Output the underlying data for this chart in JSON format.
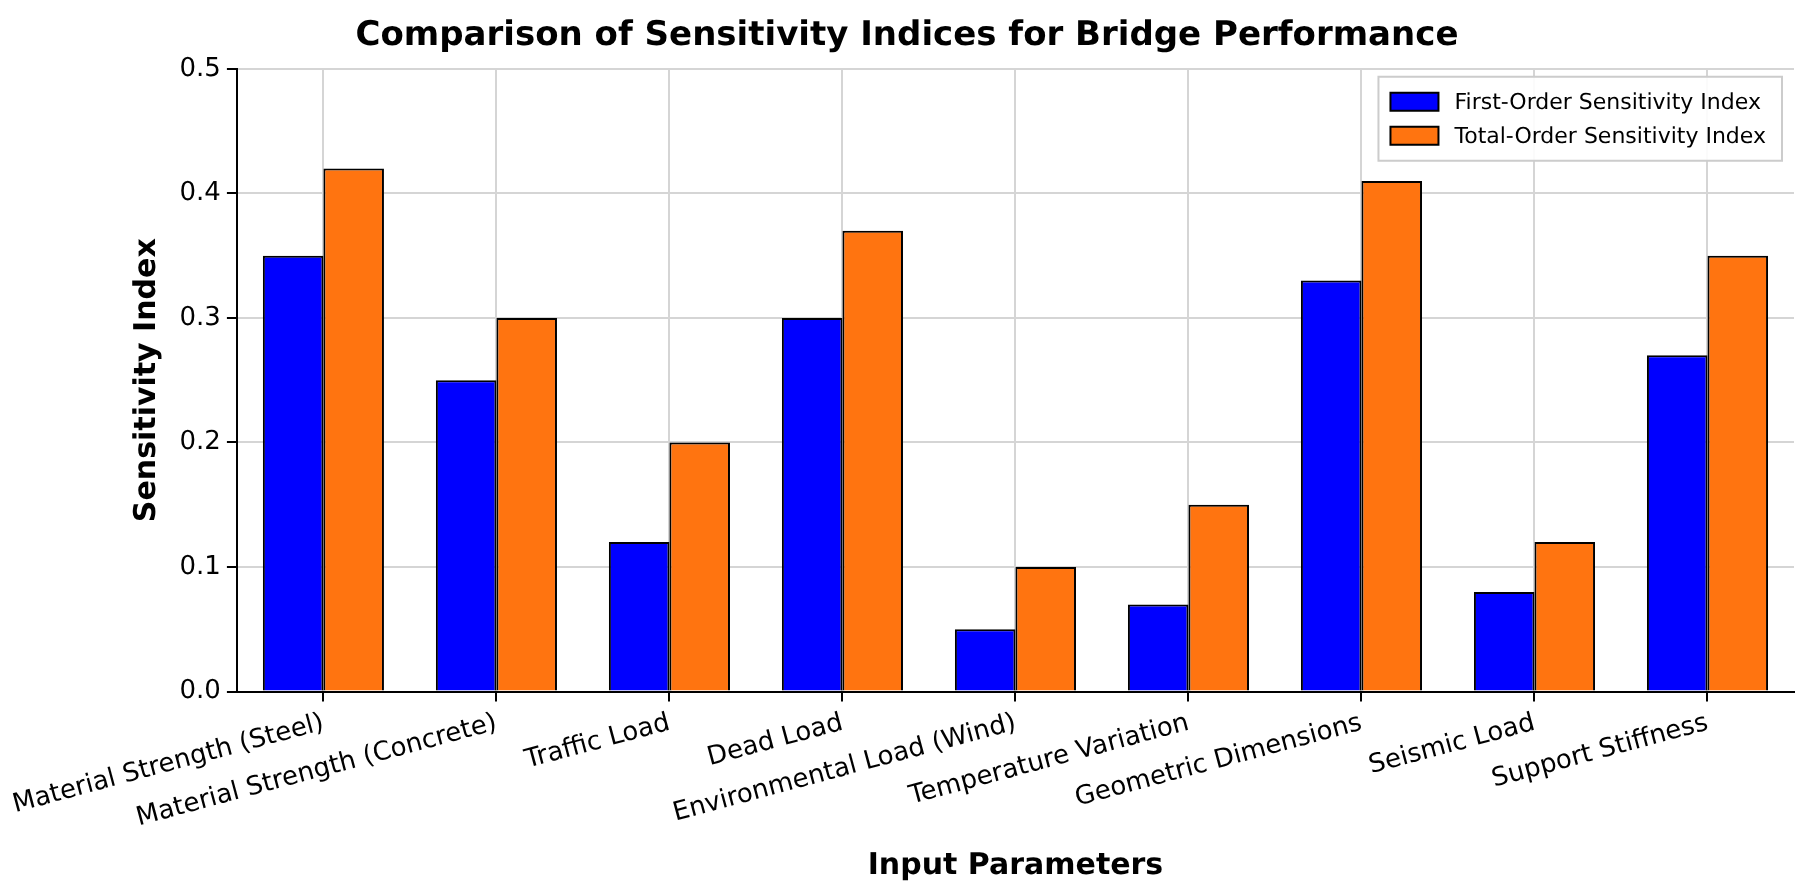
{
  "chart_data": {
    "type": "bar",
    "title": "Comparison of Sensitivity Indices for Bridge Performance",
    "xlabel": "Input Parameters",
    "ylabel": "Sensitivity Index",
    "categories": [
      "Material Strength (Steel)",
      "Material Strength (Concrete)",
      "Traffic Load",
      "Dead Load",
      "Environmental Load (Wind)",
      "Temperature Variation",
      "Geometric Dimensions",
      "Seismic Load",
      "Support Stiffness"
    ],
    "series": [
      {
        "name": "First-Order Sensitivity Index",
        "color": "#0000ff",
        "values": [
          0.35,
          0.25,
          0.12,
          0.3,
          0.05,
          0.07,
          0.33,
          0.08,
          0.27
        ]
      },
      {
        "name": "Total-Order Sensitivity Index",
        "color": "#ff7410",
        "values": [
          0.42,
          0.3,
          0.2,
          0.37,
          0.1,
          0.15,
          0.41,
          0.12,
          0.35
        ]
      }
    ],
    "ylim": [
      0,
      0.5
    ],
    "yticks": [
      {
        "value": 0,
        "label": "0.0"
      },
      0.1,
      0.2,
      0.3,
      0.4,
      0.5
    ],
    "grid": true,
    "legend": "top right"
  }
}
